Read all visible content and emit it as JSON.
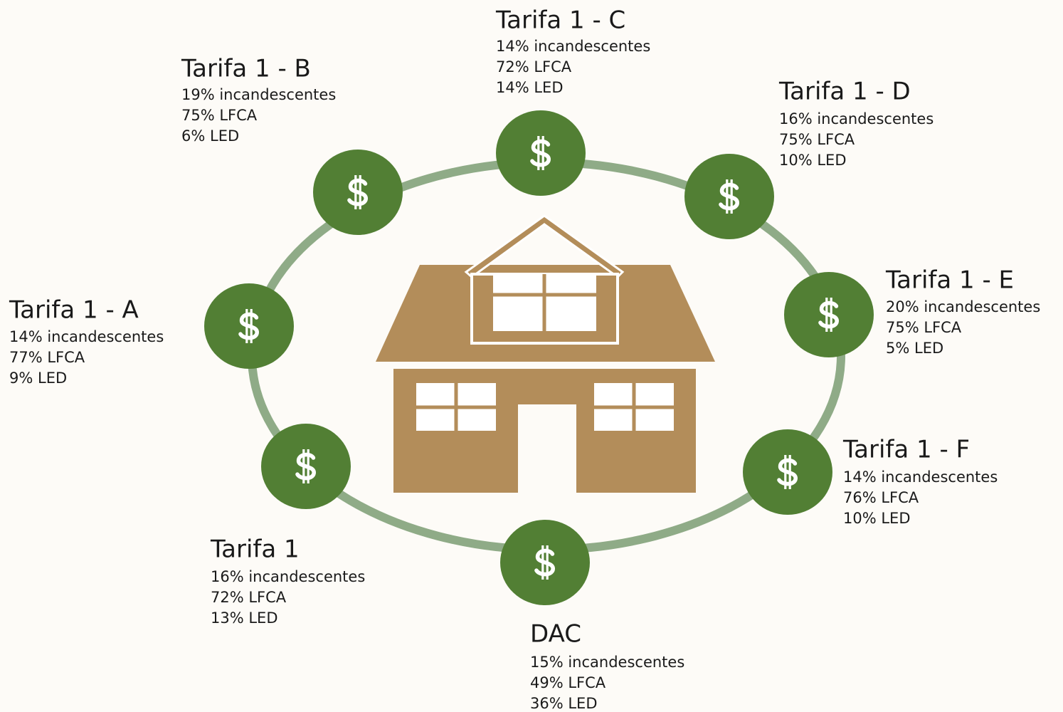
{
  "nodes": [
    {
      "title": "Tarifa 1 - B",
      "lines": [
        "19% incandescentes",
        "75% LFCA",
        "6% LED"
      ]
    },
    {
      "title": "Tarifa 1 - C",
      "lines": [
        "14% incandescentes",
        "72% LFCA",
        "14% LED"
      ]
    },
    {
      "title": "Tarifa 1 - D",
      "lines": [
        "16% incandescentes",
        "75% LFCA",
        "10% LED"
      ]
    },
    {
      "title": "Tarifa 1 - A",
      "lines": [
        "14% incandescentes",
        "77% LFCA",
        "9% LED"
      ]
    },
    {
      "title": "Tarifa 1 - E",
      "lines": [
        "20% incandescentes",
        "75% LFCA",
        "5% LED"
      ]
    },
    {
      "title": "Tarifa 1 - F",
      "lines": [
        "14% incandescentes",
        "76% LFCA",
        "10% LED"
      ]
    },
    {
      "title": "Tarifa 1",
      "lines": [
        "16% incandescentes",
        "72% LFCA",
        "13% LED"
      ]
    },
    {
      "title": "DAC",
      "lines": [
        "15% incandescentes",
        "49% LFCA",
        "36% LED"
      ]
    }
  ]
}
